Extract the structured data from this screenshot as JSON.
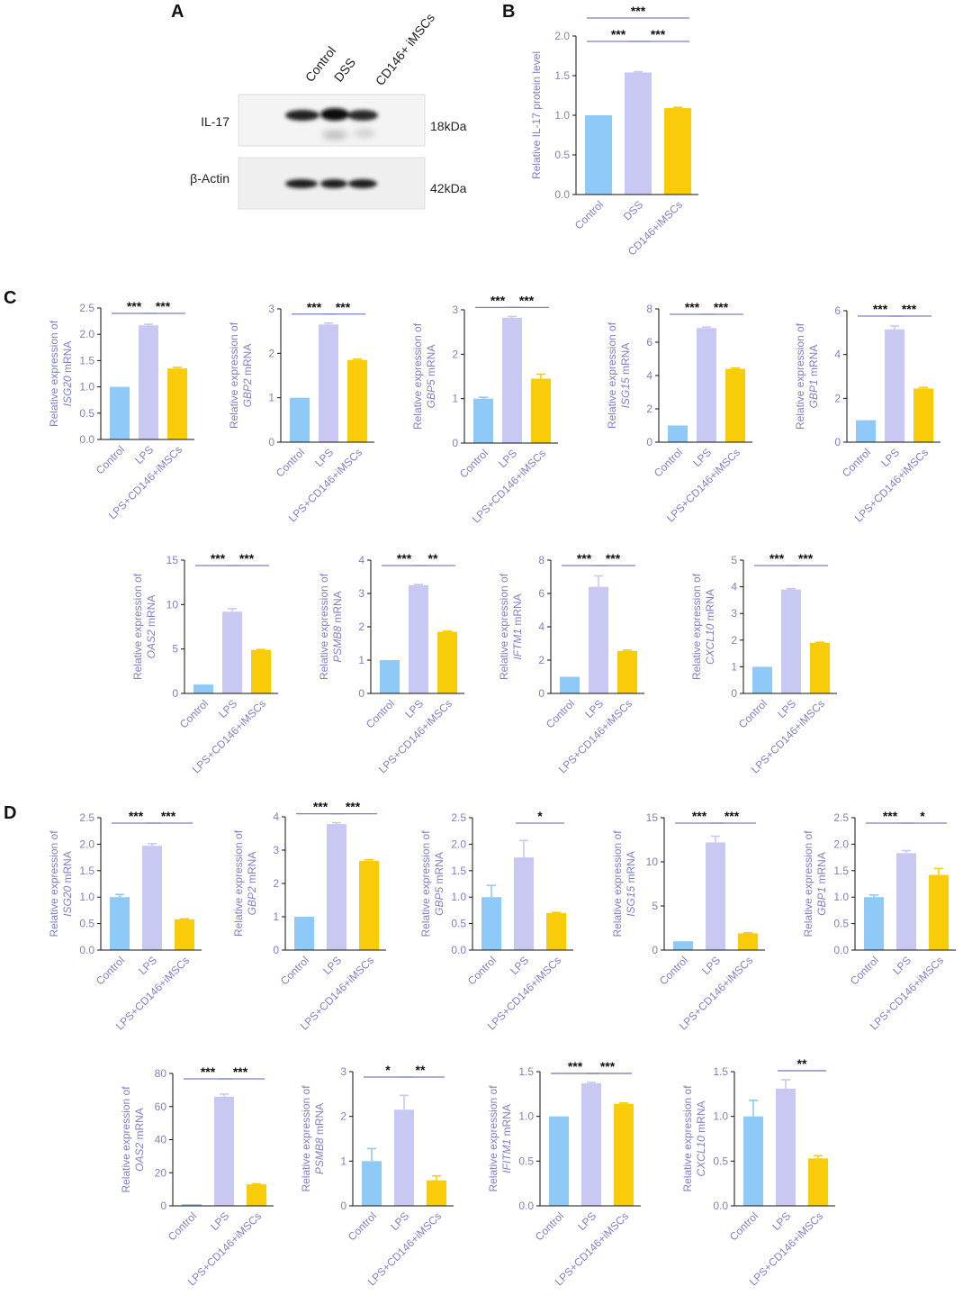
{
  "panel_letters": {
    "a": "A",
    "b": "B",
    "c": "C",
    "d": "D"
  },
  "colors": {
    "control": "#8ec9f8",
    "treat": "#c9c8f3",
    "msc": "#f9cc0a",
    "axis_text": "#8080c0",
    "axis": "#111111"
  },
  "western_blot": {
    "lanes": [
      "Control",
      "DSS",
      "CD146+ iMSCs"
    ],
    "rows": [
      {
        "label": "IL-17",
        "size": "18kDa"
      },
      {
        "label": "β-Actin",
        "size": "42kDa"
      }
    ]
  },
  "chart_data": [
    {
      "id": "B",
      "type": "bar",
      "categories": [
        "Control",
        "DSS",
        "CD146+iMSCs"
      ],
      "values": [
        1.0,
        1.54,
        1.09
      ],
      "errors": [
        0,
        0.01,
        0.01
      ],
      "ylabel": "Relative IL-17 protein level",
      "ylabel_italic": "",
      "ylabel_rest": "",
      "ylim": [
        0,
        2.0
      ],
      "ticks": [
        0,
        0.5,
        1.0,
        1.5,
        2.0
      ],
      "tick_labels": [
        "0.0",
        "0.5",
        "1.0",
        "1.5",
        "2.0"
      ],
      "sig": [
        {
          "from": 0,
          "to": 1,
          "label": "***"
        },
        {
          "from": 1,
          "to": 2,
          "label": "***"
        },
        {
          "from": 0,
          "to": 2,
          "label": "***"
        }
      ]
    },
    {
      "id": "C1",
      "type": "bar",
      "categories": [
        "Control",
        "LPS",
        "LPS+CD146+iMSCs"
      ],
      "values": [
        1.0,
        2.17,
        1.35
      ],
      "errors": [
        0,
        0.02,
        0.02
      ],
      "ylabel": "Relative expression of",
      "ylabel_italic": "ISG20",
      "ylabel_rest": " mRNA",
      "ylim": [
        0,
        2.5
      ],
      "ticks": [
        0,
        0.5,
        1,
        1.5,
        2,
        2.5
      ],
      "tick_labels": [
        "0.0",
        "0.5",
        "1.0",
        "1.5",
        "2.0",
        "2.5"
      ],
      "sig": [
        {
          "from": 0,
          "to": 1,
          "label": "***"
        },
        {
          "from": 1,
          "to": 2,
          "label": "***"
        }
      ]
    },
    {
      "id": "C2",
      "type": "bar",
      "categories": [
        "Control",
        "LPS",
        "LPS+CD146+iMSCs"
      ],
      "values": [
        1.0,
        2.65,
        1.85
      ],
      "errors": [
        0,
        0.03,
        0.02
      ],
      "ylabel": "Relative expression of",
      "ylabel_italic": "GBP2",
      "ylabel_rest": " mRNA",
      "ylim": [
        0,
        3
      ],
      "ticks": [
        0,
        1,
        2,
        3
      ],
      "tick_labels": [
        "0",
        "1",
        "2",
        "3"
      ],
      "sig": [
        {
          "from": 0,
          "to": 1,
          "label": "***"
        },
        {
          "from": 1,
          "to": 2,
          "label": "***"
        }
      ]
    },
    {
      "id": "C3",
      "type": "bar",
      "categories": [
        "Control",
        "LPS",
        "LPS+CD146+iMSCs"
      ],
      "values": [
        1.0,
        2.82,
        1.45
      ],
      "errors": [
        0.03,
        0.03,
        0.1
      ],
      "ylabel": "Relative expression of",
      "ylabel_italic": "GBP5",
      "ylabel_rest": " mRNA",
      "ylim": [
        0,
        3
      ],
      "ticks": [
        0,
        1,
        2,
        3
      ],
      "tick_labels": [
        "0",
        "1",
        "2",
        "3"
      ],
      "sig": [
        {
          "from": 0,
          "to": 1,
          "label": "***"
        },
        {
          "from": 1,
          "to": 2,
          "label": "***"
        }
      ]
    },
    {
      "id": "C4",
      "type": "bar",
      "categories": [
        "Control",
        "LPS",
        "LPS+CD146+iMSCs"
      ],
      "values": [
        1.0,
        6.85,
        4.4
      ],
      "errors": [
        0,
        0.06,
        0.05
      ],
      "ylabel": "Relative expression of",
      "ylabel_italic": "ISG15",
      "ylabel_rest": " mRNA",
      "ylim": [
        0,
        8
      ],
      "ticks": [
        0,
        2,
        4,
        6,
        8
      ],
      "tick_labels": [
        "0",
        "2",
        "4",
        "6",
        "8"
      ],
      "sig": [
        {
          "from": 0,
          "to": 1,
          "label": "***"
        },
        {
          "from": 1,
          "to": 2,
          "label": "***"
        }
      ]
    },
    {
      "id": "C5",
      "type": "bar",
      "categories": [
        "Control",
        "LPS",
        "LPS+CD146+iMSCs"
      ],
      "values": [
        1.0,
        5.15,
        2.45
      ],
      "errors": [
        0,
        0.15,
        0.05
      ],
      "ylabel": "Relative expression of",
      "ylabel_italic": "GBP1",
      "ylabel_rest": " mRNA",
      "ylim": [
        0,
        6
      ],
      "ticks": [
        0,
        2,
        4,
        6
      ],
      "tick_labels": [
        "0",
        "2",
        "4",
        "6"
      ],
      "sig": [
        {
          "from": 0,
          "to": 1,
          "label": "***"
        },
        {
          "from": 1,
          "to": 2,
          "label": "***"
        }
      ]
    },
    {
      "id": "C6",
      "type": "bar",
      "categories": [
        "Control",
        "LPS",
        "LPS+CD146+iMSCs"
      ],
      "values": [
        1.0,
        9.2,
        4.9
      ],
      "errors": [
        0,
        0.35,
        0.05
      ],
      "ylabel": "Relative expression of",
      "ylabel_italic": "OAS2",
      "ylabel_rest": " mRNA",
      "ylim": [
        0,
        15
      ],
      "ticks": [
        0,
        5,
        10,
        15
      ],
      "tick_labels": [
        "0",
        "5",
        "10",
        "15"
      ],
      "sig": [
        {
          "from": 0,
          "to": 1,
          "label": "***"
        },
        {
          "from": 1,
          "to": 2,
          "label": "***"
        }
      ]
    },
    {
      "id": "C7",
      "type": "bar",
      "categories": [
        "Control",
        "LPS",
        "LPS+CD146+iMSCs"
      ],
      "values": [
        1.0,
        3.25,
        1.85
      ],
      "errors": [
        0,
        0.02,
        0.02
      ],
      "ylabel": "Relative expression of",
      "ylabel_italic": "PSMB8",
      "ylabel_rest": " mRNA",
      "ylim": [
        0,
        4
      ],
      "ticks": [
        0,
        1,
        2,
        3,
        4
      ],
      "tick_labels": [
        "0",
        "1",
        "2",
        "3",
        "4"
      ],
      "sig": [
        {
          "from": 0,
          "to": 1,
          "label": "***"
        },
        {
          "from": 1,
          "to": 2,
          "label": "**"
        }
      ]
    },
    {
      "id": "C8",
      "type": "bar",
      "categories": [
        "Control",
        "LPS",
        "LPS+CD146+iMSCs"
      ],
      "values": [
        1.0,
        6.4,
        2.55
      ],
      "errors": [
        0,
        0.65,
        0.05
      ],
      "ylabel": "Relative expression of",
      "ylabel_italic": "IFTM1",
      "ylabel_rest": " mRNA",
      "ylim": [
        0,
        8
      ],
      "ticks": [
        0,
        2,
        4,
        6,
        8
      ],
      "tick_labels": [
        "0",
        "2",
        "4",
        "6",
        "8"
      ],
      "sig": [
        {
          "from": 0,
          "to": 1,
          "label": "***"
        },
        {
          "from": 1,
          "to": 2,
          "label": "***"
        }
      ]
    },
    {
      "id": "C9",
      "type": "bar",
      "categories": [
        "Control",
        "LPS",
        "LPS+CD146+iMSCs"
      ],
      "values": [
        1.0,
        3.9,
        1.9
      ],
      "errors": [
        0,
        0.03,
        0.02
      ],
      "ylabel": "Relative expression of",
      "ylabel_italic": "CXCL10",
      "ylabel_rest": " mRNA",
      "ylim": [
        0,
        5
      ],
      "ticks": [
        0,
        1,
        2,
        3,
        4,
        5
      ],
      "tick_labels": [
        "0",
        "1",
        "2",
        "3",
        "4",
        "5"
      ],
      "sig": [
        {
          "from": 0,
          "to": 1,
          "label": "***"
        },
        {
          "from": 1,
          "to": 2,
          "label": "***"
        }
      ]
    },
    {
      "id": "D1",
      "type": "bar",
      "categories": [
        "Control",
        "LPS",
        "LPS+CD146+iMSCs"
      ],
      "values": [
        1.0,
        1.97,
        0.58
      ],
      "errors": [
        0.05,
        0.04,
        0.01
      ],
      "ylabel": "Relative expression of",
      "ylabel_italic": "ISG20",
      "ylabel_rest": " mRNA",
      "ylim": [
        0,
        2.5
      ],
      "ticks": [
        0,
        0.5,
        1,
        1.5,
        2,
        2.5
      ],
      "tick_labels": [
        "0.0",
        "0.5",
        "1.0",
        "1.5",
        "2.0",
        "2.5"
      ],
      "sig": [
        {
          "from": 0,
          "to": 1,
          "label": "***"
        },
        {
          "from": 1,
          "to": 2,
          "label": "***"
        }
      ]
    },
    {
      "id": "D2",
      "type": "bar",
      "categories": [
        "Control",
        "LPS",
        "LPS+CD146+iMSCs"
      ],
      "values": [
        1.0,
        3.78,
        2.68
      ],
      "errors": [
        0,
        0.04,
        0.03
      ],
      "ylabel": "Relative expression of",
      "ylabel_italic": "GBP2",
      "ylabel_rest": " mRNA",
      "ylim": [
        0,
        4
      ],
      "ticks": [
        0,
        1,
        2,
        3,
        4
      ],
      "tick_labels": [
        "0",
        "1",
        "2",
        "3",
        "4"
      ],
      "sig": [
        {
          "from": 0,
          "to": 1,
          "label": "***"
        },
        {
          "from": 1,
          "to": 2,
          "label": "***"
        }
      ]
    },
    {
      "id": "D3",
      "type": "bar",
      "categories": [
        "Control",
        "LPS",
        "LPS+CD146+iMSCs"
      ],
      "values": [
        1.0,
        1.75,
        0.7
      ],
      "errors": [
        0.22,
        0.32,
        0.01
      ],
      "ylabel": "Relative expression of",
      "ylabel_italic": "GBP5",
      "ylabel_rest": " mRNA",
      "ylim": [
        0,
        2.5
      ],
      "ticks": [
        0,
        0.5,
        1,
        1.5,
        2,
        2.5
      ],
      "tick_labels": [
        "0.0",
        "0.5",
        "1.0",
        "1.5",
        "2.0",
        "2.5"
      ],
      "sig": [
        {
          "from": 1,
          "to": 2,
          "label": "*"
        }
      ]
    },
    {
      "id": "D4",
      "type": "bar",
      "categories": [
        "Control",
        "LPS",
        "LPS+CD146+iMSCs"
      ],
      "values": [
        1.0,
        12.2,
        1.9
      ],
      "errors": [
        0,
        0.7,
        0.05
      ],
      "ylabel": "Relative expression of",
      "ylabel_italic": "ISG15",
      "ylabel_rest": " mRNA",
      "ylim": [
        0,
        15
      ],
      "ticks": [
        0,
        5,
        10,
        15
      ],
      "tick_labels": [
        "0",
        "5",
        "10",
        "15"
      ],
      "sig": [
        {
          "from": 0,
          "to": 1,
          "label": "***"
        },
        {
          "from": 1,
          "to": 2,
          "label": "***"
        }
      ]
    },
    {
      "id": "D5",
      "type": "bar",
      "categories": [
        "Control",
        "LPS",
        "LPS+CD146+iMSCs"
      ],
      "values": [
        1.0,
        1.83,
        1.42
      ],
      "errors": [
        0.04,
        0.05,
        0.12
      ],
      "ylabel": "Relative expression of",
      "ylabel_italic": "GBP1",
      "ylabel_rest": " mRNA",
      "ylim": [
        0,
        2.5
      ],
      "ticks": [
        0,
        0.5,
        1,
        1.5,
        2,
        2.5
      ],
      "tick_labels": [
        "0.0",
        "0.5",
        "1.0",
        "1.5",
        "2.0",
        "2.5"
      ],
      "sig": [
        {
          "from": 0,
          "to": 1,
          "label": "***"
        },
        {
          "from": 1,
          "to": 2,
          "label": "*"
        }
      ]
    },
    {
      "id": "D6",
      "type": "bar",
      "categories": [
        "Control",
        "LPS",
        "LPS+CD146+iMSCs"
      ],
      "values": [
        1.0,
        66,
        13
      ],
      "errors": [
        0,
        1.5,
        0.3
      ],
      "ylabel": "Relative expression of",
      "ylabel_italic": "OAS2",
      "ylabel_rest": " mRNA",
      "ylim": [
        0,
        80
      ],
      "ticks": [
        0,
        20,
        40,
        60,
        80
      ],
      "tick_labels": [
        "0",
        "20",
        "40",
        "60",
        "80"
      ],
      "sig": [
        {
          "from": 0,
          "to": 1,
          "label": "***"
        },
        {
          "from": 1,
          "to": 2,
          "label": "***"
        }
      ]
    },
    {
      "id": "D7",
      "type": "bar",
      "categories": [
        "Control",
        "LPS",
        "LPS+CD146+iMSCs"
      ],
      "values": [
        1.0,
        2.15,
        0.57
      ],
      "errors": [
        0.28,
        0.32,
        0.1
      ],
      "ylabel": "Relative expression of",
      "ylabel_italic": "PSMB8",
      "ylabel_rest": " mRNA",
      "ylim": [
        0,
        3
      ],
      "ticks": [
        0,
        1,
        2,
        3
      ],
      "tick_labels": [
        "0",
        "1",
        "2",
        "3"
      ],
      "sig": [
        {
          "from": 0,
          "to": 1,
          "label": "*"
        },
        {
          "from": 1,
          "to": 2,
          "label": "**"
        }
      ]
    },
    {
      "id": "D8",
      "type": "bar",
      "categories": [
        "Control",
        "LPS",
        "LPS+CD146+iMSCs"
      ],
      "values": [
        1.0,
        1.37,
        1.14
      ],
      "errors": [
        0,
        0.01,
        0.01
      ],
      "ylabel": "Relative expression of",
      "ylabel_italic": "IFITM1",
      "ylabel_rest": " mRNA",
      "ylim": [
        0,
        1.5
      ],
      "ticks": [
        0,
        0.5,
        1,
        1.5
      ],
      "tick_labels": [
        "0.0",
        "0.5",
        "1.0",
        "1.5"
      ],
      "sig": [
        {
          "from": 0,
          "to": 1,
          "label": "***"
        },
        {
          "from": 1,
          "to": 2,
          "label": "***"
        }
      ]
    },
    {
      "id": "D9",
      "type": "bar",
      "categories": [
        "Control",
        "LPS",
        "LPS+CD146+iMSCs"
      ],
      "values": [
        1.0,
        1.31,
        0.53
      ],
      "errors": [
        0.18,
        0.1,
        0.03
      ],
      "ylabel": "Relative expression of",
      "ylabel_italic": "CXCL10",
      "ylabel_rest": " mRNA",
      "ylim": [
        0,
        1.5
      ],
      "ticks": [
        0,
        0.5,
        1,
        1.5
      ],
      "tick_labels": [
        "0.0",
        "0.5",
        "1.0",
        "1.5"
      ],
      "sig": [
        {
          "from": 1,
          "to": 2,
          "label": "**"
        }
      ]
    }
  ]
}
